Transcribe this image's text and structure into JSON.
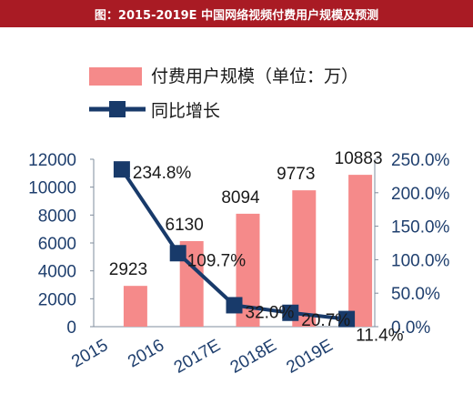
{
  "colors": {
    "title_bg": "#a91b24",
    "bar": "#f58a8a",
    "line": "#183a6a",
    "axis_text": "#1f3f6e",
    "label": "#1a1a1a"
  },
  "chart_data": {
    "type": "bar",
    "title": "图：2015-2019E 中国网络视频付费用户规模及预测",
    "categories": [
      "2015",
      "2016",
      "2017E",
      "2018E",
      "2019E"
    ],
    "series": [
      {
        "name": "付费用户规模（单位：万）",
        "type": "bar",
        "axis": "left",
        "values": [
          2923,
          6130,
          8094,
          9773,
          10883
        ],
        "labels": [
          "2923",
          "6130",
          "8094",
          "9773",
          "10883"
        ]
      },
      {
        "name": "同比增长",
        "type": "line",
        "axis": "right",
        "values": [
          234.8,
          109.7,
          32.0,
          20.7,
          11.4
        ],
        "labels": [
          "234.8%",
          "109.7%",
          "32.0%",
          "20.7%",
          "11.4%"
        ]
      }
    ],
    "y_left": {
      "min": 0,
      "max": 12000,
      "ticks": [
        "0",
        "2000",
        "4000",
        "6000",
        "8000",
        "10000",
        "12000"
      ]
    },
    "y_right": {
      "min": 0,
      "max": 250,
      "ticks": [
        "0.0%",
        "50.0%",
        "100.0%",
        "150.0%",
        "200.0%",
        "250.0%"
      ]
    },
    "grid": false,
    "legend_position": "top-center"
  }
}
